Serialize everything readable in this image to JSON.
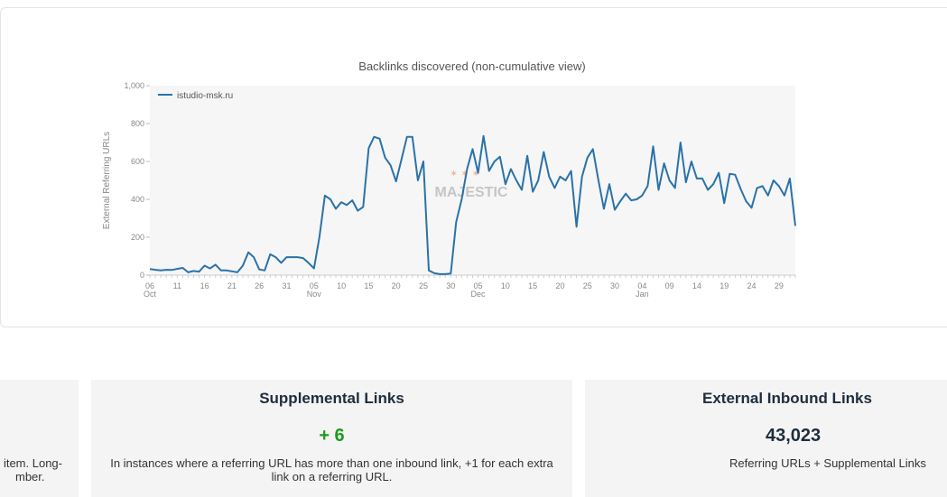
{
  "chart_data": {
    "type": "line",
    "title": "Backlinks discovered (non-cumulative view)",
    "ylabel": "External Referring URLs",
    "xlabel": "",
    "ylim": [
      0,
      1000
    ],
    "y_ticks": [
      "0",
      "200",
      "400",
      "600",
      "800",
      "1,000"
    ],
    "grid": false,
    "legend": "top-left",
    "watermark": "MAJESTIC",
    "x_range": [
      "2023-10-06",
      "2024-01-02"
    ],
    "x_ticks": [
      {
        "d": 0,
        "day": "06",
        "month": "Oct"
      },
      {
        "d": 5,
        "day": "11",
        "month": ""
      },
      {
        "d": 10,
        "day": "16",
        "month": ""
      },
      {
        "d": 15,
        "day": "21",
        "month": ""
      },
      {
        "d": 20,
        "day": "26",
        "month": ""
      },
      {
        "d": 25,
        "day": "31",
        "month": ""
      },
      {
        "d": 30,
        "day": "05",
        "month": "Nov"
      },
      {
        "d": 35,
        "day": "10",
        "month": ""
      },
      {
        "d": 40,
        "day": "15",
        "month": ""
      },
      {
        "d": 45,
        "day": "20",
        "month": ""
      },
      {
        "d": 50,
        "day": "25",
        "month": ""
      },
      {
        "d": 55,
        "day": "30",
        "month": ""
      },
      {
        "d": 60,
        "day": "05",
        "month": "Dec"
      },
      {
        "d": 65,
        "day": "10",
        "month": ""
      },
      {
        "d": 70,
        "day": "15",
        "month": ""
      },
      {
        "d": 75,
        "day": "20",
        "month": ""
      },
      {
        "d": 80,
        "day": "25",
        "month": ""
      },
      {
        "d": 85,
        "day": "30",
        "month": ""
      },
      {
        "d": 90,
        "day": "04",
        "month": "Jan"
      },
      {
        "d": 95,
        "day": "09",
        "month": ""
      },
      {
        "d": 100,
        "day": "14",
        "month": ""
      },
      {
        "d": 105,
        "day": "19",
        "month": ""
      },
      {
        "d": 110,
        "day": "24",
        "month": ""
      },
      {
        "d": 115,
        "day": "29",
        "month": ""
      }
    ],
    "series": [
      {
        "name": "istudio-msk.ru",
        "color": "#2a72a8",
        "values": [
          32,
          28,
          25,
          28,
          27,
          33,
          38,
          15,
          22,
          18,
          50,
          35,
          55,
          25,
          25,
          20,
          15,
          50,
          120,
          95,
          30,
          25,
          110,
          95,
          65,
          95,
          95,
          95,
          90,
          65,
          35,
          200,
          420,
          400,
          350,
          385,
          370,
          395,
          340,
          360,
          670,
          730,
          720,
          620,
          580,
          495,
          610,
          730,
          730,
          500,
          600,
          25,
          10,
          5,
          5,
          8,
          280,
          400,
          560,
          665,
          540,
          735,
          550,
          600,
          625,
          480,
          560,
          500,
          450,
          630,
          440,
          500,
          650,
          520,
          460,
          520,
          500,
          550,
          255,
          520,
          620,
          665,
          500,
          350,
          480,
          345,
          390,
          430,
          395,
          400,
          420,
          470,
          680,
          450,
          590,
          500,
          460,
          700,
          490,
          600,
          510,
          510,
          450,
          480,
          540,
          380,
          535,
          530,
          455,
          390,
          355,
          460,
          470,
          420,
          500,
          470,
          420,
          510,
          260
        ]
      }
    ]
  },
  "cards": {
    "left": {
      "desc_line1": "item. Long-",
      "desc_line2": "mber."
    },
    "supplemental": {
      "title": "Supplemental Links",
      "value": "+ 6",
      "value_color": "#1a9c1a",
      "desc": "In instances where a referring URL has more than one inbound link, +1 for each extra link on a referring URL."
    },
    "external": {
      "title": "External Inbound Links",
      "value": "43,023",
      "value_color": "#1f2d3d",
      "desc": "Referring URLs + Supplemental Links"
    }
  }
}
